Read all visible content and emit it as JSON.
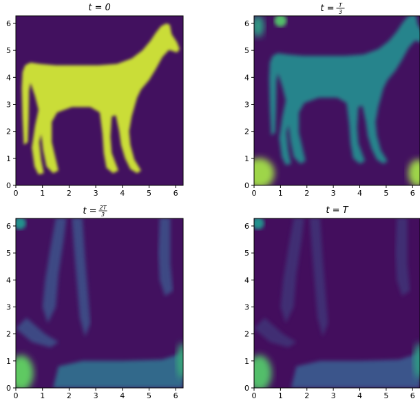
{
  "chart_data": [
    {
      "type": "heatmap",
      "panel": "top-left",
      "title": {
        "lhs": "t",
        "rhs": "0"
      },
      "xlim": [
        0,
        6.28
      ],
      "ylim": [
        0,
        6.28
      ],
      "xticks": [
        "0",
        "1",
        "2",
        "3",
        "4",
        "5",
        "6"
      ],
      "yticks": [
        "0",
        "1",
        "2",
        "3",
        "4",
        "5",
        "6"
      ],
      "colormap": "viridis",
      "description_values": {
        "background_level": 0.05,
        "shape_level": 0.92
      }
    },
    {
      "type": "heatmap",
      "panel": "top-right",
      "title": {
        "lhs": "t",
        "num": "T",
        "den": "3"
      },
      "xlim": [
        0,
        6.28
      ],
      "ylim": [
        0,
        6.28
      ],
      "xticks": [
        "0",
        "1",
        "2",
        "3",
        "4",
        "5",
        "6"
      ],
      "yticks": [
        "0",
        "1",
        "2",
        "3",
        "4",
        "5",
        "6"
      ],
      "colormap": "viridis",
      "description_values": {
        "background_level": 0.05,
        "shape_level": 0.45,
        "corner_level": 0.85
      }
    },
    {
      "type": "heatmap",
      "panel": "bottom-left",
      "title": {
        "lhs": "t",
        "num": "2T",
        "den": "3"
      },
      "xlim": [
        0,
        6.28
      ],
      "ylim": [
        0,
        6.28
      ],
      "xticks": [
        "0",
        "1",
        "2",
        "3",
        "4",
        "5",
        "6"
      ],
      "yticks": [
        "0",
        "1",
        "2",
        "3",
        "4",
        "5",
        "6"
      ],
      "colormap": "viridis",
      "description_values": {
        "background_level": 0.05,
        "shape_level": 0.22,
        "corner_level": 0.75
      }
    },
    {
      "type": "heatmap",
      "panel": "bottom-right",
      "title": {
        "lhs": "t",
        "rhs": "T"
      },
      "xlim": [
        0,
        6.28
      ],
      "ylim": [
        0,
        6.28
      ],
      "xticks": [
        "0",
        "1",
        "2",
        "3",
        "4",
        "5",
        "6"
      ],
      "yticks": [
        "0",
        "1",
        "2",
        "3",
        "4",
        "5",
        "6"
      ],
      "colormap": "viridis",
      "description_values": {
        "background_level": 0.04,
        "shape_level": 0.14,
        "corner_level": 0.7
      }
    }
  ]
}
